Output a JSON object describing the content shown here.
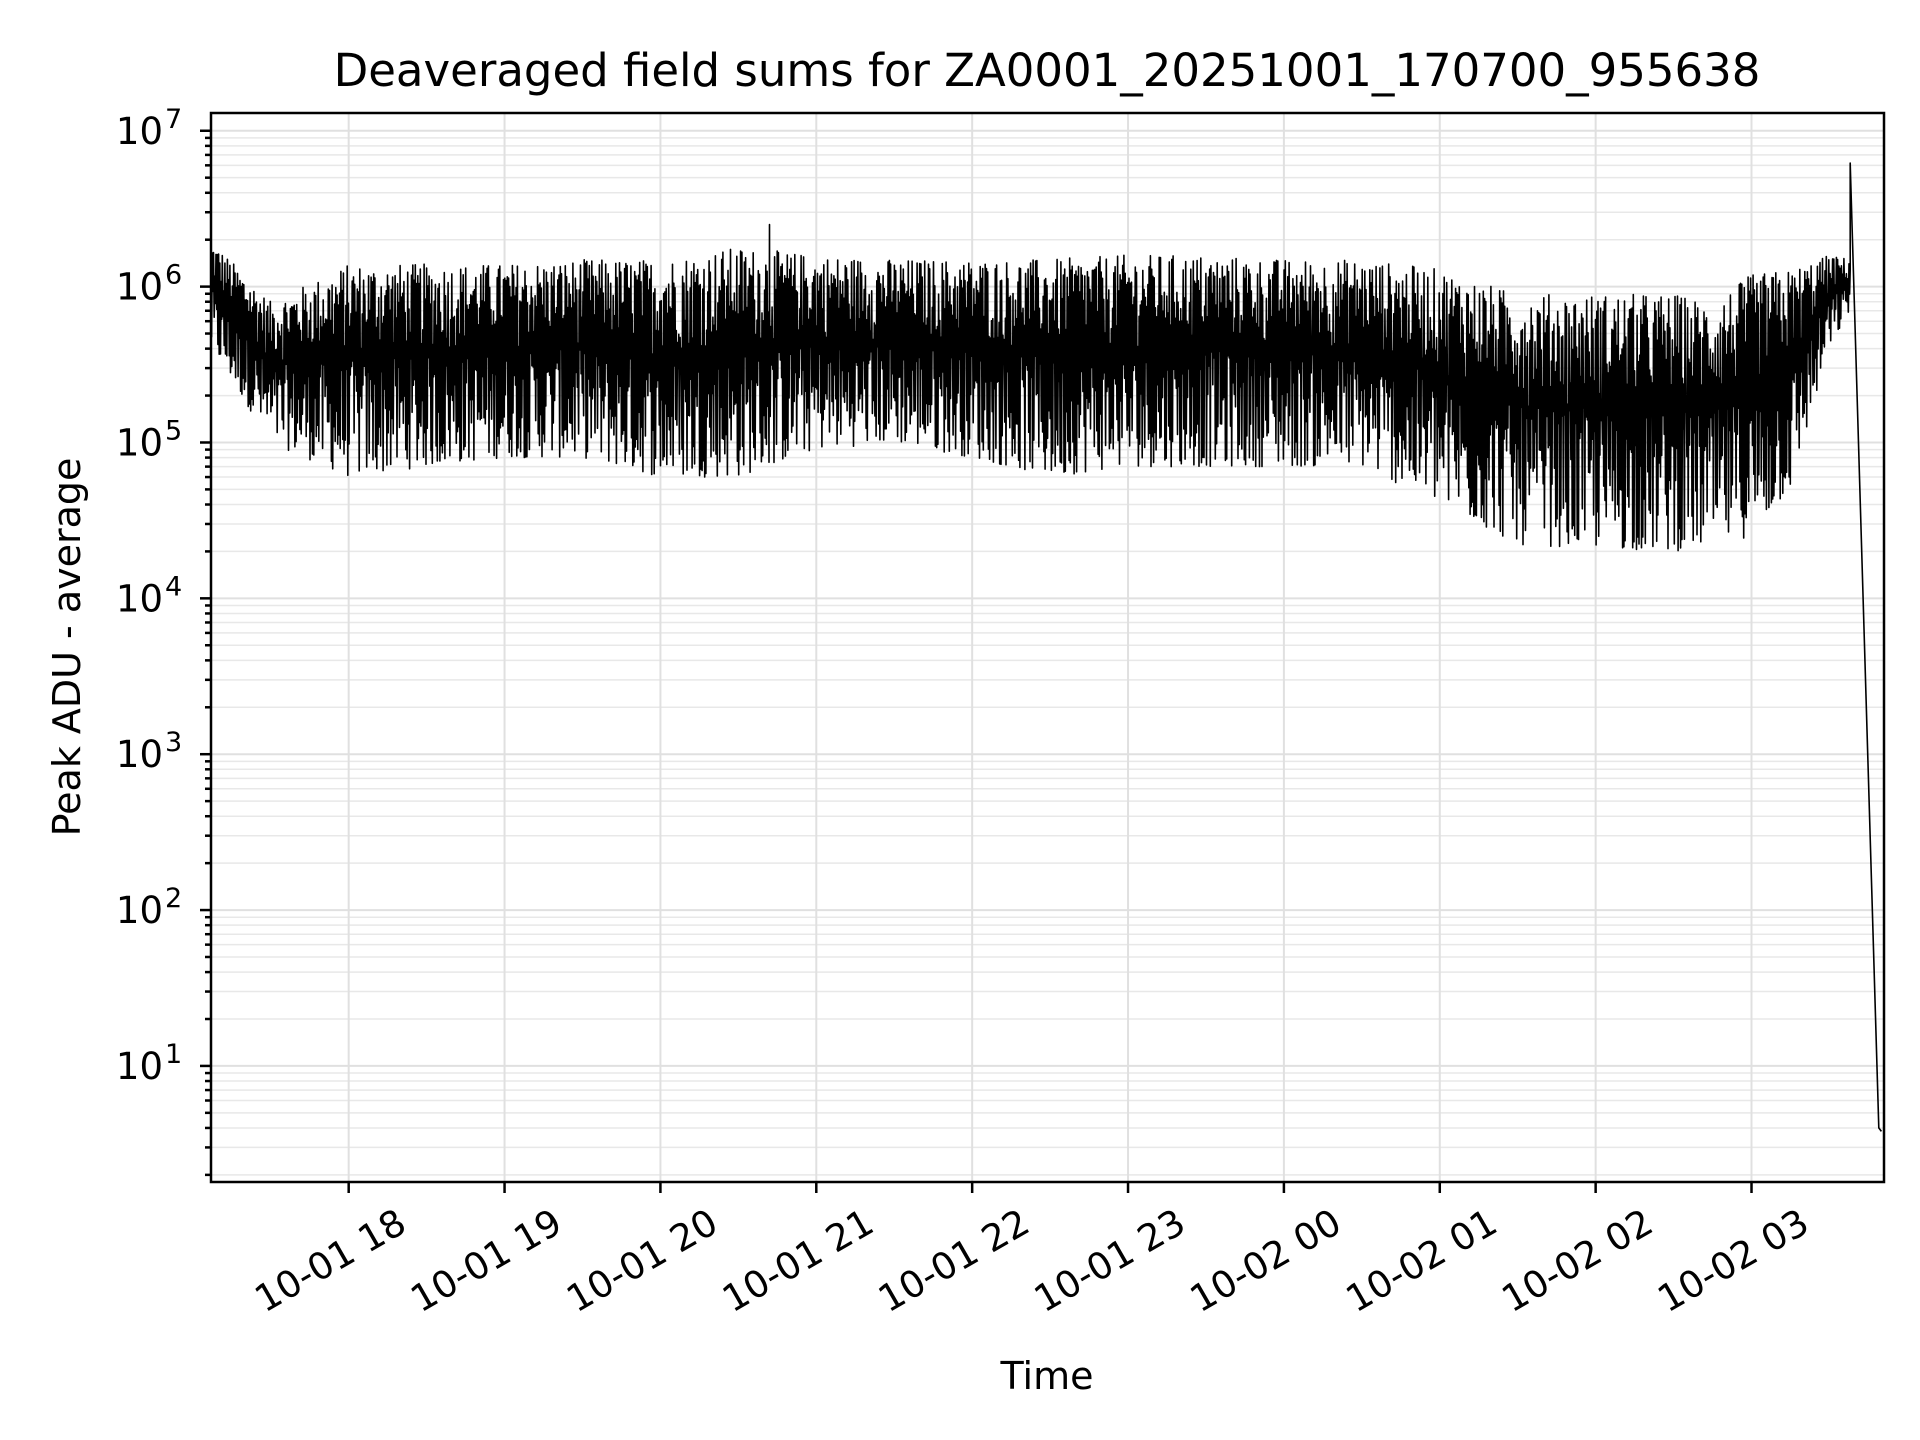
{
  "chart_data": {
    "type": "line",
    "title": "Deaveraged field sums for ZA0001_20251001_170700_955638",
    "xlabel": "Time",
    "ylabel": "Peak ADU - average",
    "yscale": "log",
    "ylim": [
      1.8,
      13000000
    ],
    "xlim": [
      "2025-10-01 17:07:00",
      "2025-10-02 03:51:00"
    ],
    "grid": true,
    "line_color": "#000000",
    "x_ticks": [
      {
        "value": "2025-10-01 18:00",
        "label": "10-01 18"
      },
      {
        "value": "2025-10-01 19:00",
        "label": "10-01 19"
      },
      {
        "value": "2025-10-01 20:00",
        "label": "10-01 20"
      },
      {
        "value": "2025-10-01 21:00",
        "label": "10-01 21"
      },
      {
        "value": "2025-10-01 22:00",
        "label": "10-01 22"
      },
      {
        "value": "2025-10-01 23:00",
        "label": "10-01 23"
      },
      {
        "value": "2025-10-02 00:00",
        "label": "10-02 00"
      },
      {
        "value": "2025-10-02 01:00",
        "label": "10-02 01"
      },
      {
        "value": "2025-10-02 02:00",
        "label": "10-02 02"
      },
      {
        "value": "2025-10-02 03:00",
        "label": "10-02 03"
      }
    ],
    "y_ticks": [
      {
        "value": 10,
        "base": "10",
        "exp": "1"
      },
      {
        "value": 100,
        "base": "10",
        "exp": "2"
      },
      {
        "value": 1000,
        "base": "10",
        "exp": "3"
      },
      {
        "value": 10000,
        "base": "10",
        "exp": "4"
      },
      {
        "value": 100000,
        "base": "10",
        "exp": "5"
      },
      {
        "value": 1000000,
        "base": "10",
        "exp": "6"
      },
      {
        "value": 10000000,
        "base": "10",
        "exp": "7"
      }
    ],
    "series": [
      {
        "envelope": {
          "x": [
            "2025-10-01 17:07",
            "2025-10-01 17:30",
            "2025-10-01 18:00",
            "2025-10-01 18:30",
            "2025-10-01 19:00",
            "2025-10-01 19:30",
            "2025-10-01 20:00",
            "2025-10-01 20:30",
            "2025-10-01 21:00",
            "2025-10-01 21:30",
            "2025-10-01 22:00",
            "2025-10-01 22:30",
            "2025-10-01 23:00",
            "2025-10-01 23:30",
            "2025-10-02 00:00",
            "2025-10-02 00:30",
            "2025-10-02 01:00",
            "2025-10-02 01:30",
            "2025-10-02 02:00",
            "2025-10-02 02:30",
            "2025-10-02 02:45",
            "2025-10-02 03:00",
            "2025-10-02 03:15",
            "2025-10-02 03:30",
            "2025-10-02 03:38"
          ],
          "low": [
            400000,
            100000,
            60000,
            70000,
            80000,
            80000,
            60000,
            60000,
            90000,
            100000,
            80000,
            60000,
            70000,
            70000,
            70000,
            70000,
            40000,
            22000,
            21000,
            20000,
            22000,
            25000,
            50000,
            400000,
            700000
          ],
          "high": [
            2000000,
            800000,
            1400000,
            1400000,
            1400000,
            1500000,
            1500000,
            1800000,
            1600000,
            1500000,
            1500000,
            1500000,
            1600000,
            1600000,
            1500000,
            1500000,
            1300000,
            900000,
            900000,
            900000,
            800000,
            1200000,
            1300000,
            1600000,
            1500000
          ]
        },
        "notable_points": [
          {
            "x": "2025-10-01 20:42",
            "y": 2500000
          },
          {
            "x": "2025-10-02 03:38",
            "y": 6200000
          },
          {
            "x": "2025-10-02 03:49",
            "y": 4
          },
          {
            "x": "2025-10-02 03:50",
            "y": 3.8
          }
        ]
      }
    ]
  }
}
